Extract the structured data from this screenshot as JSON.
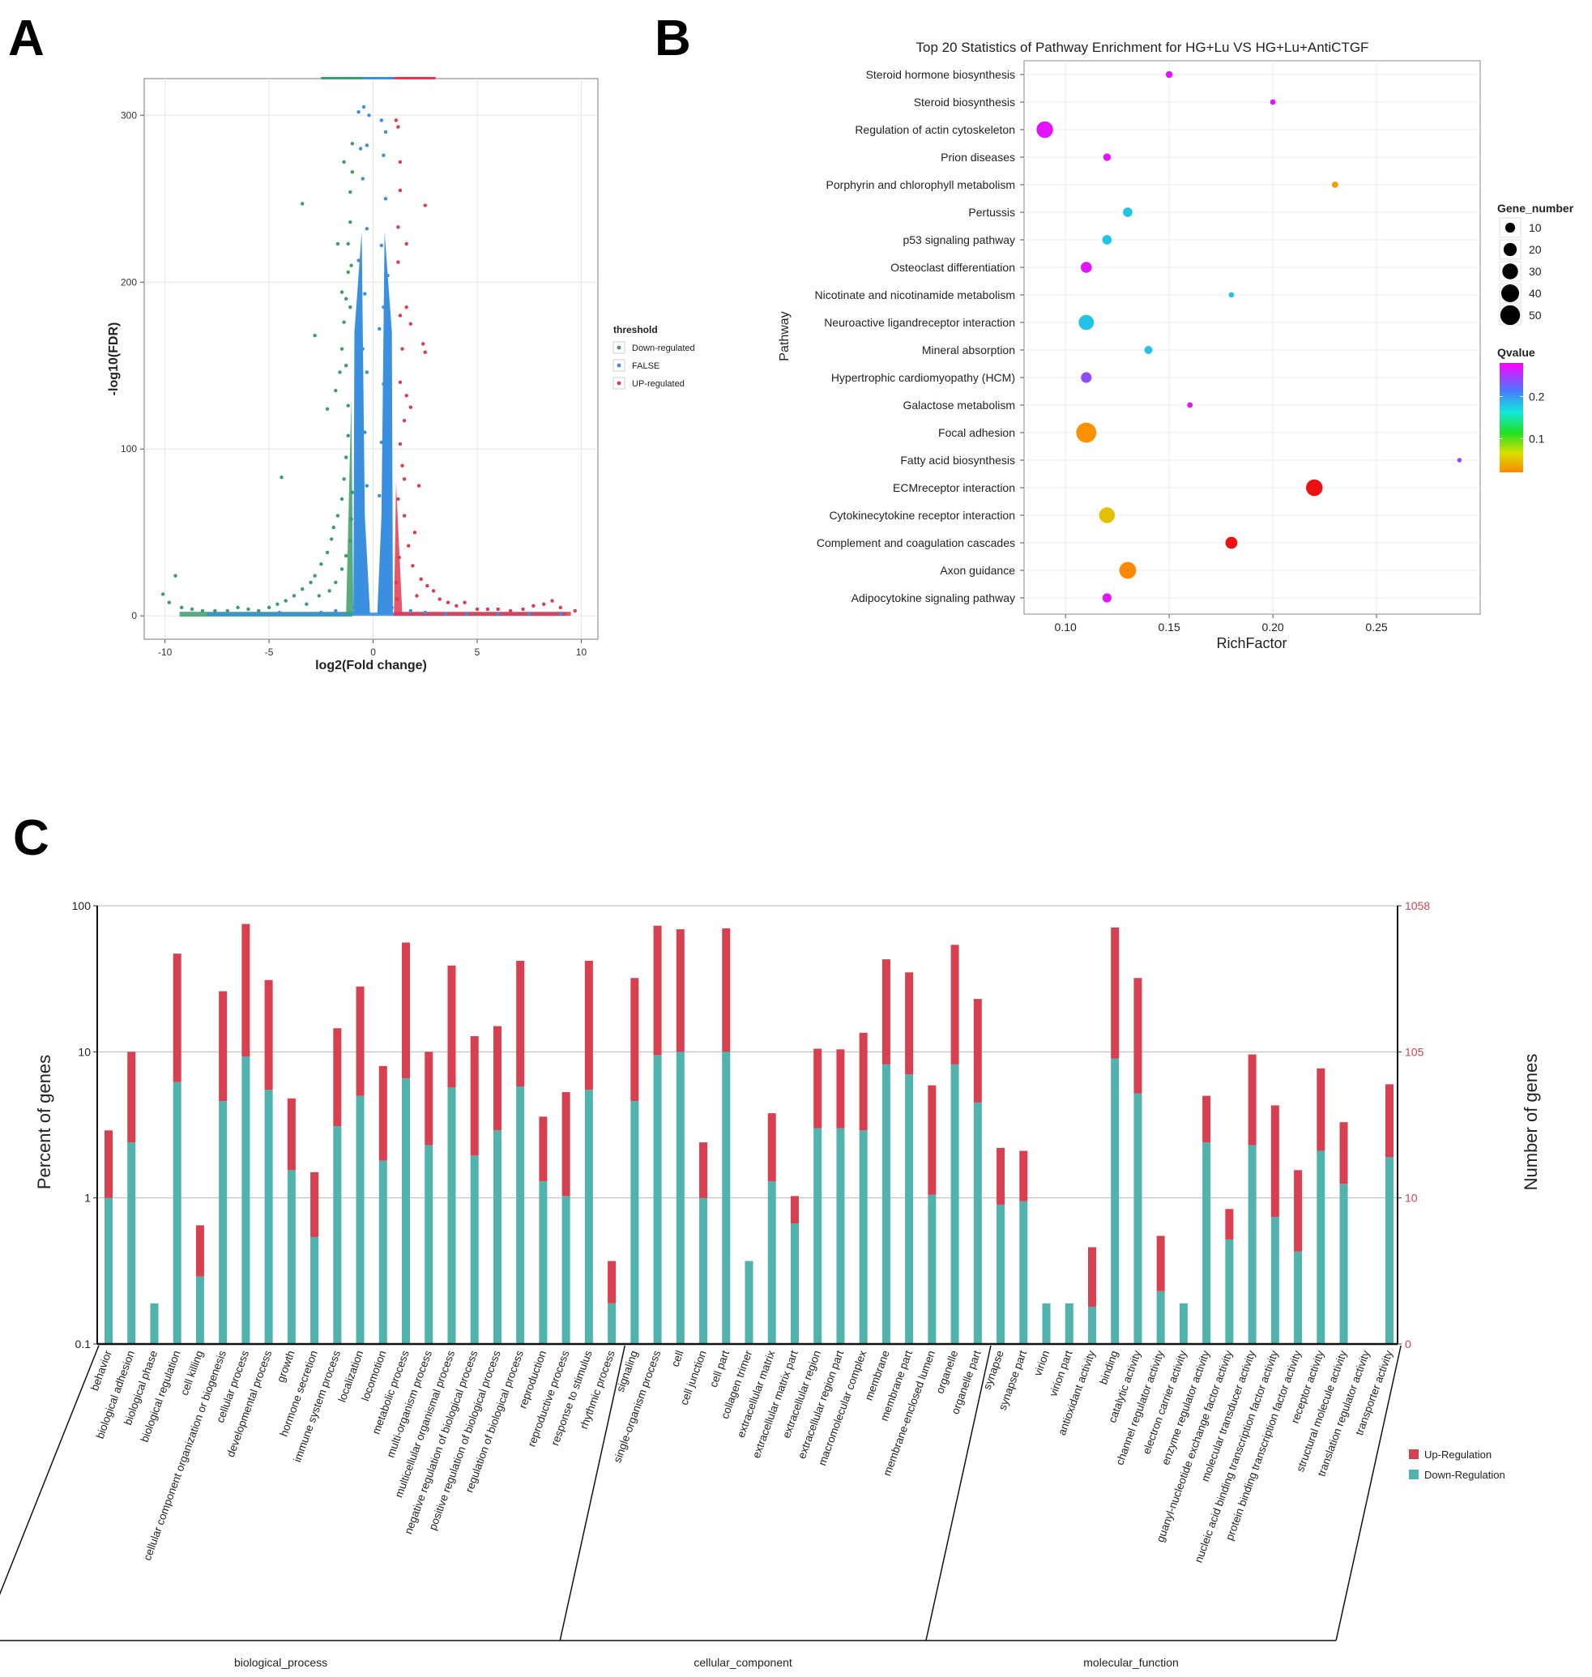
{
  "panel_labels": [
    "A",
    "B",
    "C"
  ],
  "colors": {
    "down": "#3a9e6a",
    "false": "#3a8fe0",
    "up": "#e2394f",
    "bar_up": "#d9404f",
    "bar_down": "#50b3ad",
    "right_axis": "#d9404f"
  },
  "chart_data": [
    {
      "panel": "A",
      "type": "scatter",
      "xlabel": "log2(Fold change)",
      "ylabel": "-log10(FDR)",
      "xlim": [
        -11,
        10.8
      ],
      "ylim": [
        -14,
        322
      ],
      "xticks": [
        -10,
        -5,
        0,
        5,
        10
      ],
      "yticks": [
        0,
        100,
        200,
        300
      ],
      "grid": true,
      "legend_title": "threshold",
      "legend_position": "right",
      "series": [
        {
          "name": "Down-regulated",
          "key": "down",
          "points": [
            [
              -9.5,
              24
            ],
            [
              -10.1,
              13
            ],
            [
              -9.8,
              8
            ],
            [
              -9.2,
              5
            ],
            [
              -8.7,
              4
            ],
            [
              -8.2,
              3
            ],
            [
              -7.6,
              3
            ],
            [
              -7,
              3
            ],
            [
              -6.5,
              5
            ],
            [
              -6,
              4
            ],
            [
              -5.5,
              3
            ],
            [
              -5,
              5
            ],
            [
              -4.6,
              7
            ],
            [
              -4.2,
              9
            ],
            [
              -3.8,
              12
            ],
            [
              -3.4,
              16
            ],
            [
              -3,
              20
            ],
            [
              -4.4,
              83
            ],
            [
              -3.4,
              247
            ],
            [
              -2.8,
              24
            ],
            [
              -2.5,
              31
            ],
            [
              -2.2,
              38
            ],
            [
              -2,
              46
            ],
            [
              -1.9,
              53
            ],
            [
              -1.7,
              60
            ],
            [
              -1.5,
              70
            ],
            [
              -1.4,
              82
            ],
            [
              -1.3,
              95
            ],
            [
              -1.2,
              108
            ],
            [
              -2.8,
              168
            ],
            [
              -1.8,
              135
            ],
            [
              -1.6,
              146
            ],
            [
              -1.5,
              160
            ],
            [
              -1.4,
              176
            ],
            [
              -1.3,
              190
            ],
            [
              -1.2,
              206
            ],
            [
              -1.2,
              223
            ],
            [
              -1.1,
              236
            ],
            [
              -1.1,
              254
            ],
            [
              -1.5,
              194
            ],
            [
              -2.2,
              124
            ],
            [
              -1.7,
              223
            ],
            [
              -1,
              266
            ],
            [
              -1.4,
              272
            ],
            [
              -1,
              283
            ],
            [
              -3.2,
              7
            ],
            [
              -2.6,
              12
            ],
            [
              -2.1,
              15
            ],
            [
              -1.8,
              20
            ],
            [
              -1.5,
              28
            ],
            [
              -1.3,
              36
            ],
            [
              -1.1,
              45
            ],
            [
              -1.05,
              58
            ],
            [
              -1,
              74
            ],
            [
              -1.2,
              126
            ],
            [
              -1.3,
              150
            ],
            [
              -1.1,
              185
            ],
            [
              -1.05,
              210
            ]
          ]
        },
        {
          "name": "FALSE",
          "key": "false",
          "points": [
            [
              -7.5,
              1
            ],
            [
              -6,
              1
            ],
            [
              -4.5,
              2
            ],
            [
              -3.5,
              1
            ],
            [
              -2.5,
              2
            ],
            [
              -1.8,
              3
            ],
            [
              -0.9,
              5
            ],
            [
              0.9,
              5
            ],
            [
              1.8,
              3
            ],
            [
              2.5,
              2
            ],
            [
              3.5,
              1
            ],
            [
              4.5,
              1
            ],
            [
              6,
              1
            ],
            [
              7.5,
              1
            ],
            [
              9,
              1
            ],
            [
              -0.7,
              302
            ],
            [
              -0.45,
              305
            ],
            [
              -0.2,
              300
            ],
            [
              0.4,
              297
            ],
            [
              0.6,
              290
            ],
            [
              -0.6,
              280
            ],
            [
              -0.3,
              282
            ],
            [
              0.5,
              276
            ],
            [
              -0.5,
              262
            ],
            [
              0.6,
              250
            ],
            [
              -0.3,
              232
            ],
            [
              0.4,
              222
            ],
            [
              -0.7,
              213
            ],
            [
              0.7,
              204
            ],
            [
              -0.4,
              193
            ],
            [
              0.5,
              185
            ],
            [
              -0.6,
              178
            ],
            [
              0.3,
              172
            ],
            [
              -0.5,
              160
            ],
            [
              0.6,
              154
            ],
            [
              -0.3,
              146
            ],
            [
              0.5,
              139
            ],
            [
              -0.7,
              127
            ],
            [
              0.7,
              120
            ],
            [
              -0.4,
              110
            ],
            [
              0.4,
              104
            ],
            [
              -0.6,
              92
            ],
            [
              0.6,
              86
            ],
            [
              -0.3,
              78
            ],
            [
              0.3,
              72
            ],
            [
              -0.5,
              62
            ],
            [
              0.5,
              57
            ],
            [
              -0.7,
              48
            ],
            [
              0.7,
              42
            ],
            [
              -0.4,
              35
            ],
            [
              0.4,
              28
            ],
            [
              -0.6,
              20
            ],
            [
              0.6,
              15
            ],
            [
              -0.3,
              10
            ],
            [
              0.3,
              6
            ],
            [
              -0.8,
              25
            ],
            [
              0.8,
              22
            ],
            [
              -0.85,
              55
            ],
            [
              0.85,
              50
            ]
          ]
        },
        {
          "name": "UP-regulated",
          "key": "up",
          "points": [
            [
              9.7,
              3
            ],
            [
              9,
              5
            ],
            [
              8.6,
              9
            ],
            [
              8.2,
              7
            ],
            [
              7.7,
              6
            ],
            [
              7.2,
              4
            ],
            [
              6.6,
              3
            ],
            [
              6,
              4
            ],
            [
              5.5,
              4
            ],
            [
              5,
              4
            ],
            [
              4.4,
              8
            ],
            [
              4,
              6
            ],
            [
              3.6,
              8
            ],
            [
              3.2,
              10
            ],
            [
              2.9,
              15
            ],
            [
              2.6,
              18
            ],
            [
              2.3,
              22
            ],
            [
              2.1,
              12
            ],
            [
              1.9,
              30
            ],
            [
              1.7,
              42
            ],
            [
              1.5,
              60
            ],
            [
              1.4,
              90
            ],
            [
              1.3,
              103
            ],
            [
              1.3,
              140
            ],
            [
              1.3,
              180
            ],
            [
              1.2,
              212
            ],
            [
              1.2,
              233
            ],
            [
              1.3,
              255
            ],
            [
              1.3,
              272
            ],
            [
              1.2,
              293
            ],
            [
              1.1,
              297
            ],
            [
              2.4,
              163
            ],
            [
              2.5,
              158
            ],
            [
              1.5,
              117
            ],
            [
              2.5,
              246
            ],
            [
              1.6,
              223
            ],
            [
              1.6,
              185
            ],
            [
              1.8,
              175
            ],
            [
              1.4,
              160
            ],
            [
              1.5,
              82
            ],
            [
              1.2,
              70
            ],
            [
              1.25,
              35
            ],
            [
              1.1,
              20
            ],
            [
              1.15,
              10
            ],
            [
              2,
              50
            ],
            [
              2.2,
              78
            ],
            [
              1.8,
              125
            ],
            [
              1.6,
              132
            ]
          ]
        }
      ]
    },
    {
      "panel": "B",
      "type": "scatter",
      "title": "Top 20 Statistics of Pathway Enrichment for HG+Lu VS HG+Lu+AntiCTGF",
      "xlabel": "RichFactor",
      "ylabel": "Pathway",
      "xlim": [
        0.08,
        0.3
      ],
      "xticks": [
        0.1,
        0.15,
        0.2,
        0.25
      ],
      "grid": true,
      "size_legend_title": "Gene_number",
      "size_legend_values": [
        10,
        20,
        30,
        40,
        50
      ],
      "color_legend_title": "Qvalue",
      "color_legend_ticks": [
        0.2,
        0.1
      ],
      "color_range": [
        0.02,
        0.28
      ],
      "legend_position": "right",
      "points": [
        {
          "pathway": "Steroid hormone biosynthesis",
          "rich": 0.15,
          "genes": 4,
          "q": 0.27
        },
        {
          "pathway": "Steroid biosynthesis",
          "rich": 0.2,
          "genes": 2,
          "q": 0.27
        },
        {
          "pathway": "Regulation of actin cytoskeleton",
          "rich": 0.09,
          "genes": 34,
          "q": 0.27
        },
        {
          "pathway": "Prion diseases",
          "rich": 0.12,
          "genes": 5,
          "q": 0.27
        },
        {
          "pathway": "Porphyrin and chlorophyll metabolism",
          "rich": 0.23,
          "genes": 3,
          "q": 0.03
        },
        {
          "pathway": "Pertussis",
          "rich": 0.13,
          "genes": 9,
          "q": 0.18
        },
        {
          "pathway": "p53 signaling pathway",
          "rich": 0.12,
          "genes": 9,
          "q": 0.18
        },
        {
          "pathway": "Osteoclast differentiation",
          "rich": 0.11,
          "genes": 13,
          "q": 0.27
        },
        {
          "pathway": "Nicotinate and nicotinamide metabolism",
          "rich": 0.18,
          "genes": 2,
          "q": 0.18
        },
        {
          "pathway": "Neuroactive ligandreceptor interaction",
          "rich": 0.11,
          "genes": 28,
          "q": 0.18
        },
        {
          "pathway": "Mineral absorption",
          "rich": 0.14,
          "genes": 6,
          "q": 0.18
        },
        {
          "pathway": "Hypertrophic cardiomyopathy (HCM)",
          "rich": 0.11,
          "genes": 12,
          "q": 0.24
        },
        {
          "pathway": "Galactose metabolism",
          "rich": 0.16,
          "genes": 2,
          "q": 0.27
        },
        {
          "pathway": "Focal adhesion",
          "rich": 0.11,
          "genes": 52,
          "q": 0.025
        },
        {
          "pathway": "Fatty acid biosynthesis",
          "rich": 0.29,
          "genes": 1,
          "q": 0.24
        },
        {
          "pathway": "ECMreceptor interaction",
          "rich": 0.22,
          "genes": 34,
          "q": 0.0
        },
        {
          "pathway": "Cytokinecytokine receptor interaction",
          "rich": 0.12,
          "genes": 30,
          "q": 0.05
        },
        {
          "pathway": "Complement and coagulation cascades",
          "rich": 0.18,
          "genes": 16,
          "q": 0.0
        },
        {
          "pathway": "Axon guidance",
          "rich": 0.13,
          "genes": 35,
          "q": 0.01
        },
        {
          "pathway": "Adipocytokine signaling pathway",
          "rich": 0.12,
          "genes": 8,
          "q": 0.27
        }
      ]
    },
    {
      "panel": "C",
      "type": "bar",
      "ylabel": "Percent of genes",
      "ylabel_right": "Number of genes",
      "yscale": "log",
      "ylim": [
        0.1,
        100
      ],
      "yticks": [
        "0.1",
        "1",
        "10",
        "100"
      ],
      "right_yticks": [
        "0",
        "10",
        "105",
        "1058"
      ],
      "legend_position": "right",
      "series_names": {
        "up": "Up-Regulation",
        "down": "Down-Regulation"
      },
      "groups": [
        {
          "name": "biological_process",
          "start": 0,
          "end": 22
        },
        {
          "name": "cellular_component",
          "start": 23,
          "end": 38
        },
        {
          "name": "molecular_function",
          "start": 39,
          "end": 56
        }
      ],
      "categories": [
        "behavior",
        "biological adhesion",
        "biological phase",
        "biological regulation",
        "cell killing",
        "cellular component organization or biogenesis",
        "cellular process",
        "developmental process",
        "growth",
        "hormone secretion",
        "immune system process",
        "localization",
        "locomotion",
        "metabolic process",
        "multi-organism process",
        "multicellular organismal process",
        "negative regulation of biological process",
        "positive regulation of biological process",
        "regulation of biological process",
        "reproduction",
        "reproductive process",
        "response to stimulus",
        "rhythmic process",
        "signaling",
        "single-organism process",
        "cell",
        "cell junction",
        "cell part",
        "collagen trimer",
        "extracellular matrix",
        "extracellular matrix part",
        "extracellular region",
        "extracellular region part",
        "macromolecular complex",
        "membrane",
        "membrane part",
        "membrane-enclosed lumen",
        "organelle",
        "organelle part",
        "synapse",
        "synapse part",
        "virion",
        "virion part",
        "antioxidant activity",
        "binding",
        "catalytic activity",
        "channel regulator activity",
        "electron carrier activity",
        "enzyme regulator activity",
        "guanyl-nucleotide exchange factor activity",
        "molecular transducer activity",
        "nucleic acid binding transcription factor activity",
        "protein binding transcription factor activity",
        "receptor activity",
        "structural molecule activity",
        "translation regulator activity",
        "transporter activity"
      ],
      "down": [
        1.0,
        2.4,
        0.19,
        6.2,
        0.29,
        4.6,
        9.3,
        5.5,
        1.55,
        0.54,
        3.1,
        5.0,
        1.8,
        6.6,
        2.3,
        5.7,
        1.95,
        2.9,
        5.8,
        1.3,
        1.03,
        5.5,
        0.19,
        4.6,
        9.5,
        10.0,
        1.0,
        10.0,
        0.37,
        1.3,
        0.67,
        3.0,
        3.0,
        2.9,
        8.2,
        7.0,
        1.05,
        8.2,
        4.5,
        0.9,
        0.95,
        0.19,
        0.19,
        0.18,
        9.0,
        5.2,
        0.23,
        0.19,
        2.4,
        0.52,
        2.3,
        0.74,
        0.43,
        2.1,
        1.25,
        0.1,
        1.9
      ],
      "total": [
        2.9,
        10.0,
        0.19,
        47,
        0.65,
        26,
        75,
        31,
        4.8,
        1.5,
        14.5,
        28,
        8.0,
        56,
        10.0,
        39,
        12.8,
        15,
        42,
        3.6,
        5.3,
        42,
        0.37,
        32,
        73,
        69,
        2.4,
        70,
        0.37,
        3.8,
        1.03,
        10.5,
        10.4,
        13.5,
        43,
        35,
        5.9,
        54,
        23,
        2.2,
        2.1,
        0.19,
        0.19,
        0.46,
        71,
        32,
        0.55,
        0.19,
        5.0,
        0.84,
        9.6,
        4.3,
        1.55,
        7.7,
        3.3,
        0.1,
        6.0
      ]
    }
  ]
}
